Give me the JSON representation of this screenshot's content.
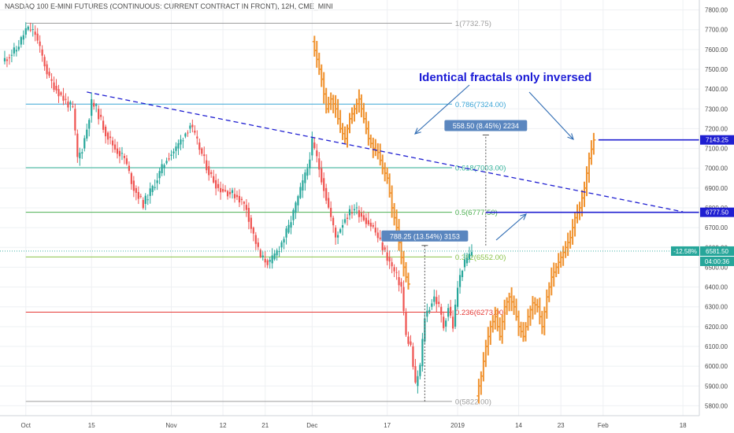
{
  "header": {
    "title": "NASDAQ 100 E-MINI FUTURES (CONTINUOUS: CURRENT CONTRACT IN FRONT), 12H, CME_MINI"
  },
  "annotation": {
    "text": "Identical fractals only inversed"
  },
  "chart_data": {
    "type": "candlestick",
    "ylim": [
      5750,
      7850
    ],
    "y_ticks": [
      5800,
      5900,
      6000,
      6100,
      6200,
      6300,
      6400,
      6500,
      6600,
      6700,
      6800,
      6900,
      7000,
      7100,
      7200,
      7300,
      7400,
      7500,
      7600,
      7700,
      7800
    ],
    "y_tick_labels": [
      "5800.00",
      "5900.00",
      "6000.00",
      "6100.00",
      "6200.00",
      "6300.00",
      "6400.00",
      "6500.00",
      "6600.00",
      "6700.00",
      "6800.00",
      "6900.00",
      "7000.00",
      "7100.00",
      "7200.00",
      "7300.00",
      "7400.00",
      "7500.00",
      "7600.00",
      "7700.00",
      "7800.00"
    ],
    "x_ticks": [
      {
        "label": "Oct",
        "day": 0
      },
      {
        "label": "15",
        "day": 14
      },
      {
        "label": "Nov",
        "day": 31
      },
      {
        "label": "12",
        "day": 42
      },
      {
        "label": "21",
        "day": 51
      },
      {
        "label": "Dec",
        "day": 61
      },
      {
        "label": "17",
        "day": 77
      },
      {
        "label": "2019",
        "day": 92
      },
      {
        "label": "14",
        "day": 105
      },
      {
        "label": "23",
        "day": 114
      },
      {
        "label": "Feb",
        "day": 123
      },
      {
        "label": "18",
        "day": 140
      }
    ],
    "x_range_days": [
      -5.5,
      143.5
    ],
    "fib_levels": [
      {
        "ratio": "1",
        "value": 7732.75,
        "label": "1(7732.75)",
        "color": "#9e9e9e"
      },
      {
        "ratio": "0.786",
        "value": 7324.0,
        "label": "0.786(7324.00)",
        "color": "#3ca5d6"
      },
      {
        "ratio": "0.618",
        "value": 7003.0,
        "label": "0.618(7003.00)",
        "color": "#34b39a"
      },
      {
        "ratio": "0.5",
        "value": 6777.5,
        "label": "0.5(6777.50)",
        "color": "#4caf50"
      },
      {
        "ratio": "0.382",
        "value": 6552.0,
        "label": "0.382(6552.00)",
        "color": "#8bc34a"
      },
      {
        "ratio": "0.236",
        "value": 6273.0,
        "label": "0.236(6273.00)",
        "color": "#e53935"
      },
      {
        "ratio": "0",
        "value": 5822.0,
        "label": "0(5822.00)",
        "color": "#9e9e9e"
      }
    ],
    "price_tags": [
      {
        "label": "7143.25",
        "value": 7143.25,
        "color": "#1f1fd1"
      },
      {
        "label": "6777.50",
        "value": 6777.5,
        "color": "#1f1fd1"
      },
      {
        "label": "6581.50",
        "value": 6581.5,
        "color": "#26a69a"
      }
    ],
    "change_tag": {
      "label": "-12.58%",
      "color": "#26a69a"
    },
    "countdown": {
      "label": "04:00:36",
      "color": "#26a69a"
    },
    "last_price": 6581.5,
    "measurements": [
      {
        "label": "788.25 (13.54%) 3153",
        "from": 5822,
        "to": 6610,
        "day": 85
      },
      {
        "label": "558.50 (8.45%) 2234",
        "from": 6610,
        "to": 7168,
        "day": 98
      }
    ],
    "trendline": {
      "start": [
        13,
        7385
      ],
      "end": [
        140,
        6780
      ]
    },
    "projection_levels": [
      {
        "value": 6777.5,
        "from_day": 98,
        "to_day": 143
      },
      {
        "value": 7143.25,
        "from_day": 122,
        "to_day": 143
      }
    ],
    "colors": {
      "up": "#26a69a",
      "down": "#ef5350",
      "fractal": "#f0922e",
      "trend": "#1f1fd1",
      "grid": "#eef0f3"
    }
  }
}
